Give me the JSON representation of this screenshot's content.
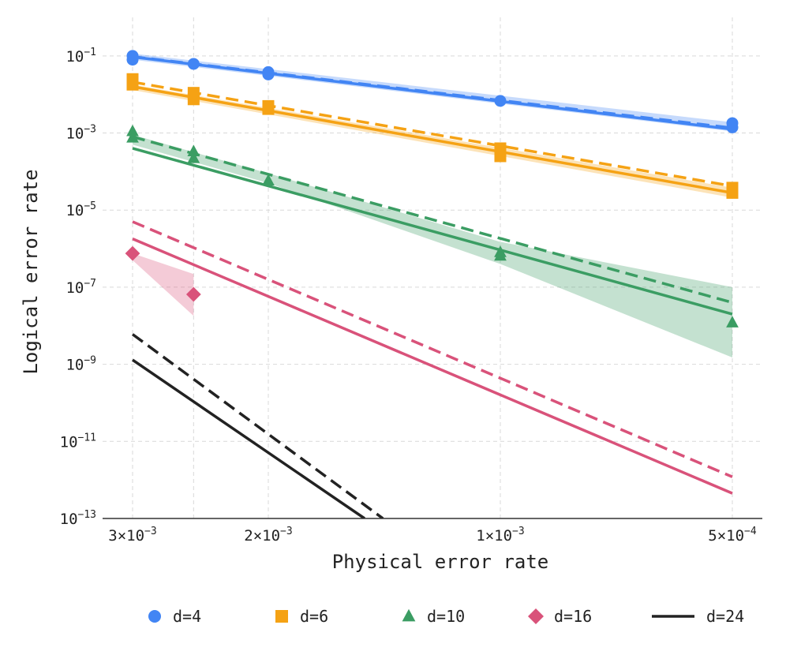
{
  "chart_data": {
    "type": "line",
    "xlabel": "Physical error rate",
    "ylabel": "Logical error rate",
    "x_scale": "log",
    "x_reversed": true,
    "y_scale": "log",
    "xlim": [
      0.003,
      0.0005
    ],
    "ylim": [
      1e-13,
      1
    ],
    "grid": true,
    "legend_position": "bottom",
    "x_ticks": [
      {
        "value": 0.003,
        "base": "3×10",
        "exp": "−3"
      },
      {
        "value": 0.002,
        "base": "2×10",
        "exp": "−3"
      },
      {
        "value": 0.001,
        "base": "1×10",
        "exp": "−3"
      },
      {
        "value": 0.0005,
        "base": "5×10",
        "exp": "−4"
      }
    ],
    "x_minor_gridlines": [
      0.0025
    ],
    "y_ticks": [
      {
        "value": 0.1,
        "base": "10",
        "exp": "−1"
      },
      {
        "value": 0.001,
        "base": "10",
        "exp": "−3"
      },
      {
        "value": 1e-05,
        "base": "10",
        "exp": "−5"
      },
      {
        "value": 1e-07,
        "base": "10",
        "exp": "−7"
      },
      {
        "value": 1e-09,
        "base": "10",
        "exp": "−9"
      },
      {
        "value": 1e-11,
        "base": "10",
        "exp": "−11"
      },
      {
        "value": 1e-13,
        "base": "10",
        "exp": "−13"
      }
    ],
    "series": [
      {
        "name": "d=4",
        "color": "#4285f4",
        "marker": "circle",
        "points": [
          [
            0.003,
            0.1
          ],
          [
            0.003,
            0.08
          ],
          [
            0.0025,
            0.062
          ],
          [
            0.002,
            0.038
          ],
          [
            0.002,
            0.033
          ],
          [
            0.001,
            0.0068
          ],
          [
            0.0005,
            0.0018
          ],
          [
            0.0005,
            0.0014
          ]
        ],
        "fit_solid": [
          [
            0.003,
            0.094
          ],
          [
            0.0005,
            0.00125
          ]
        ],
        "fit_dashed": [
          [
            0.003,
            0.096
          ],
          [
            0.0005,
            0.00135
          ]
        ],
        "band": [
          [
            0.003,
            0.115
          ],
          [
            0.0005,
            0.0019
          ],
          [
            0.0005,
            0.0011
          ],
          [
            0.003,
            0.08
          ]
        ]
      },
      {
        "name": "d=6",
        "color": "#f5a214",
        "marker": "square",
        "points": [
          [
            0.003,
            0.018
          ],
          [
            0.003,
            0.025
          ],
          [
            0.0025,
            0.0075
          ],
          [
            0.0025,
            0.011
          ],
          [
            0.002,
            0.0042
          ],
          [
            0.002,
            0.005
          ],
          [
            0.001,
            0.00025
          ],
          [
            0.001,
            0.0004
          ],
          [
            0.0005,
            2.8e-05
          ],
          [
            0.0005,
            3.8e-05
          ]
        ],
        "fit_solid": [
          [
            0.003,
            0.016
          ],
          [
            0.0005,
            2.8e-05
          ]
        ],
        "fit_dashed": [
          [
            0.003,
            0.021
          ],
          [
            0.0005,
            4.2e-05
          ]
        ],
        "band": [
          [
            0.003,
            0.018
          ],
          [
            0.0005,
            3.8e-05
          ],
          [
            0.0005,
            2.1e-05
          ],
          [
            0.003,
            0.013
          ]
        ]
      },
      {
        "name": "d=10",
        "color": "#3b9d63",
        "marker": "triangle",
        "points": [
          [
            0.003,
            0.0011
          ],
          [
            0.003,
            0.00075
          ],
          [
            0.0025,
            0.00033
          ],
          [
            0.0025,
            0.00022
          ],
          [
            0.002,
            5.8e-05
          ],
          [
            0.001,
            8e-07
          ],
          [
            0.001,
            6.5e-07
          ],
          [
            0.0005,
            1.2e-08
          ]
        ],
        "fit_solid": [
          [
            0.003,
            0.0004
          ],
          [
            0.0005,
            2e-08
          ]
        ],
        "fit_dashed": [
          [
            0.003,
            0.0008
          ],
          [
            0.0005,
            4e-08
          ]
        ],
        "band": [
          [
            0.003,
            0.0009
          ],
          [
            0.002,
            9e-05
          ],
          [
            0.001,
            1.5e-06
          ],
          [
            0.0005,
            1e-07
          ],
          [
            0.0005,
            1.5e-09
          ],
          [
            0.001,
            4e-07
          ],
          [
            0.002,
            5e-05
          ],
          [
            0.003,
            0.0005
          ]
        ]
      },
      {
        "name": "d=16",
        "color": "#d9527a",
        "marker": "diamond",
        "points": [
          [
            0.003,
            7.5e-07
          ],
          [
            0.0025,
            6.5e-08
          ]
        ],
        "fit_solid": [
          [
            0.003,
            1.8e-06
          ],
          [
            0.0005,
            4.5e-13
          ]
        ],
        "fit_dashed": [
          [
            0.003,
            5e-06
          ],
          [
            0.0005,
            1.2e-12
          ]
        ],
        "band": [
          [
            0.003,
            7.5e-07
          ],
          [
            0.0025,
            2.2e-07
          ],
          [
            0.0025,
            1.8e-08
          ],
          [
            0.003,
            5e-07
          ]
        ]
      },
      {
        "name": "d=24",
        "color": "#222222",
        "marker": "line",
        "points": [],
        "fit_solid": [
          [
            0.003,
            1.3e-09
          ],
          [
            0.0015,
            1e-13
          ]
        ],
        "fit_dashed": [
          [
            0.003,
            6e-09
          ],
          [
            0.00142,
            1e-13
          ]
        ],
        "band": []
      }
    ]
  },
  "legend": [
    {
      "label": "d=4",
      "color": "#4285f4",
      "marker": "circle"
    },
    {
      "label": "d=6",
      "color": "#f5a214",
      "marker": "square"
    },
    {
      "label": "d=10",
      "color": "#3b9d63",
      "marker": "triangle"
    },
    {
      "label": "d=16",
      "color": "#d9527a",
      "marker": "diamond"
    },
    {
      "label": "d=24",
      "color": "#222222",
      "marker": "line"
    }
  ]
}
